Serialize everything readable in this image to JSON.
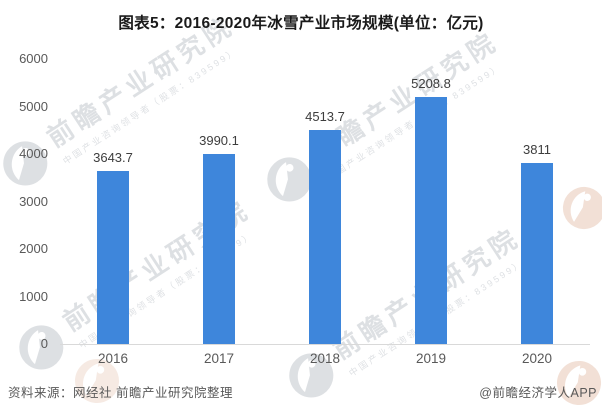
{
  "title": "图表5：2016-2020年冰雪产业市场规模(单位：亿元)",
  "colors": {
    "bar": "#3e86db",
    "axis_line": "#d9d9d9",
    "tick_label": "#595959",
    "title": "#1a1a1a",
    "watermark_gray": "#99a1ab",
    "watermark_warm": "#efd9cd"
  },
  "chart_data": {
    "type": "bar",
    "title": "图表5：2016-2020年冰雪产业市场规模(单位：亿元)",
    "categories": [
      "2016",
      "2017",
      "2018",
      "2019",
      "2020"
    ],
    "values": [
      3643.7,
      3990.1,
      4513.7,
      5208.8,
      3811
    ],
    "value_labels": [
      "3643.7",
      "3990.1",
      "4513.7",
      "5208.8",
      "3811"
    ],
    "xlabel": "",
    "ylabel": "",
    "unit": "亿元",
    "ylim": [
      0,
      6000
    ],
    "yticks": [
      0,
      1000,
      2000,
      3000,
      4000,
      5000,
      6000
    ],
    "grid": false,
    "legend": false,
    "bar_color": "#3e86db"
  },
  "watermark": {
    "text": "前瞻产业研究院",
    "subtext": "中国产业咨询领导者（股票：839599）"
  },
  "footer": {
    "source": "资料来源：网经社 前瞻产业研究院整理",
    "brand": "@前瞻经济学人APP"
  }
}
